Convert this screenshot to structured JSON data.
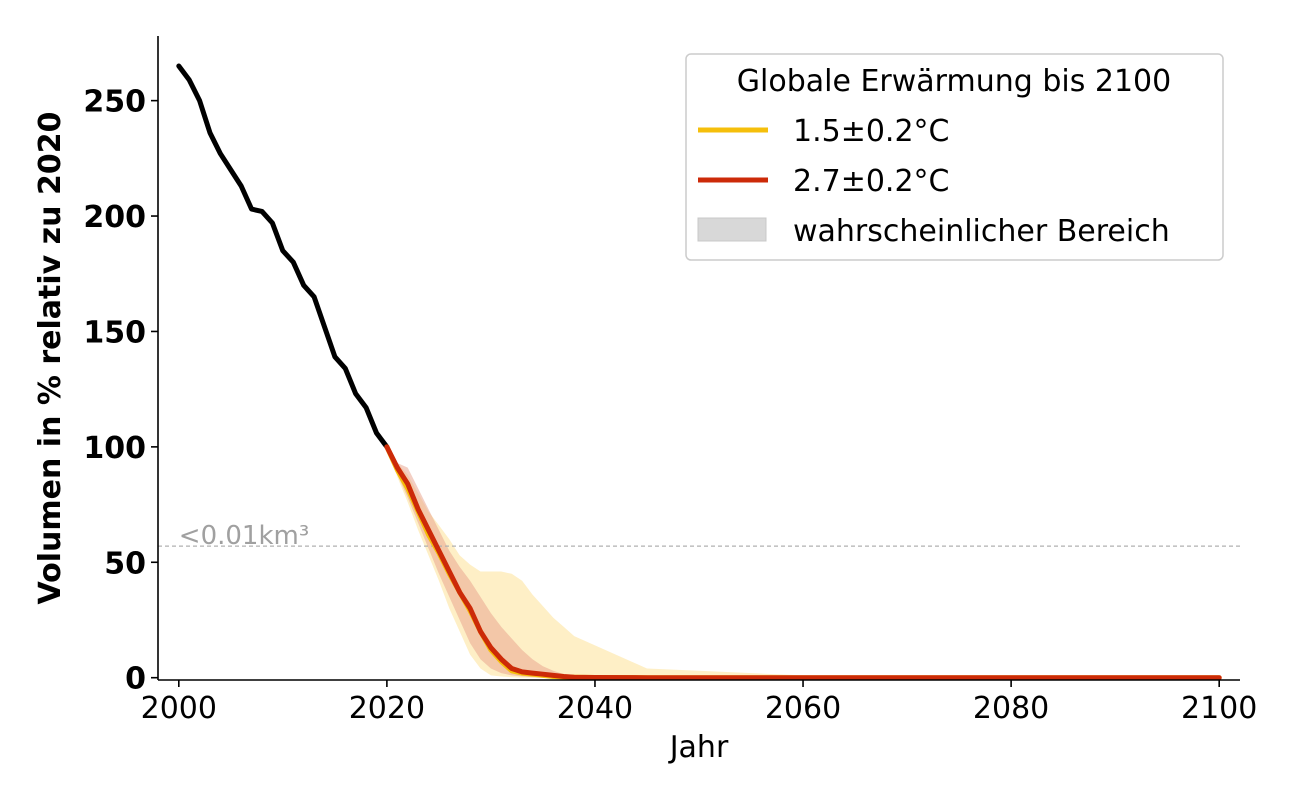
{
  "chart_data": {
    "type": "line",
    "xlabel": "Jahr",
    "ylabel": "Volumen in % relativ zu 2020",
    "xlim": [
      1998,
      2102
    ],
    "ylim": [
      -1,
      278
    ],
    "xticks": [
      2000,
      2020,
      2040,
      2060,
      2080,
      2100
    ],
    "yticks": [
      0,
      50,
      100,
      150,
      200,
      250
    ],
    "grid": false,
    "legend": {
      "title": "Globale Erwärmung bis 2100",
      "placement": "top-right",
      "entries": [
        {
          "label": "1.5±0.2°C",
          "color": "#f5bf0b",
          "kind": "line"
        },
        {
          "label": "2.7±0.2°C",
          "color": "#cc2a08",
          "kind": "line"
        },
        {
          "label": "wahrscheinlicher Bereich",
          "color": "#d8d8d8",
          "kind": "patch"
        }
      ]
    },
    "threshold": {
      "y": 57,
      "label": "<0.01km³",
      "color": "#b0b0b0"
    },
    "series": [
      {
        "role": "historical",
        "color": "#000000",
        "x": [
          2000,
          2001,
          2002,
          2003,
          2004,
          2005,
          2006,
          2007,
          2008,
          2009,
          2010,
          2011,
          2012,
          2013,
          2014,
          2015,
          2016,
          2017,
          2018,
          2019,
          2020
        ],
        "y": [
          265,
          259,
          250,
          236,
          227,
          220,
          213,
          203,
          202,
          197,
          185,
          180,
          170,
          165,
          152,
          139,
          134,
          123,
          117,
          106,
          100
        ]
      },
      {
        "name": "1.5±0.2°C",
        "color": "#f5bf0b",
        "band_color": "#fde4a0",
        "x": [
          2020,
          2021,
          2022,
          2023,
          2024,
          2025,
          2026,
          2027,
          2028,
          2029,
          2030,
          2031,
          2032,
          2033,
          2034,
          2035,
          2036,
          2037,
          2038,
          2040,
          2045,
          2050,
          2060,
          2080,
          2100
        ],
        "y": [
          100,
          90,
          82,
          72,
          62,
          54,
          45,
          37,
          29,
          20,
          12,
          7,
          3,
          2,
          1.5,
          1,
          0.5,
          0.3,
          0.2,
          0.1,
          0,
          0,
          0,
          0,
          0
        ],
        "upper": [
          100,
          93,
          88,
          80,
          72,
          66,
          60,
          53,
          49,
          46,
          46,
          46,
          45,
          42,
          36,
          31,
          26,
          22,
          18,
          14,
          4,
          3,
          1,
          0,
          0
        ],
        "lower": [
          100,
          87,
          76,
          64,
          53,
          42,
          30,
          20,
          10,
          4,
          1,
          0.5,
          0.2,
          0,
          0,
          0,
          0,
          0,
          0,
          0,
          0,
          0,
          0,
          0,
          0
        ]
      },
      {
        "name": "2.7±0.2°C",
        "color": "#cc2a08",
        "band_color": "#e8a089",
        "x": [
          2020,
          2021,
          2022,
          2023,
          2024,
          2025,
          2026,
          2027,
          2028,
          2029,
          2030,
          2031,
          2032,
          2033,
          2034,
          2035,
          2036,
          2037,
          2038,
          2040,
          2045,
          2050,
          2060,
          2080,
          2100
        ],
        "y": [
          100,
          91,
          84,
          73,
          64,
          55,
          46,
          37,
          30,
          20,
          13,
          8,
          4,
          2.5,
          2,
          1.5,
          1,
          0.5,
          0.2,
          0.1,
          0,
          0,
          0,
          0,
          0
        ],
        "upper": [
          100,
          93,
          91,
          82,
          73,
          64,
          55,
          48,
          42,
          35,
          28,
          22,
          17,
          12,
          8,
          5,
          3,
          1.5,
          0.5,
          0.2,
          0,
          0,
          0,
          0,
          0
        ],
        "lower": [
          100,
          88,
          78,
          67,
          56,
          45,
          35,
          25,
          15,
          8,
          4,
          2,
          1,
          0.5,
          0.2,
          0,
          0,
          0,
          0,
          0,
          0,
          0,
          0,
          0,
          0
        ]
      }
    ]
  }
}
